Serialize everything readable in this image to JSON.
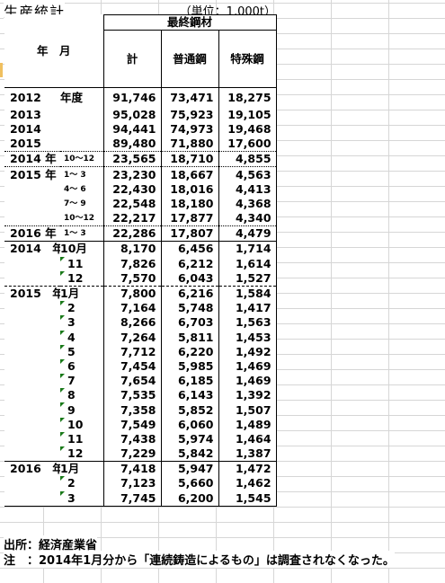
{
  "title": "生産統計",
  "unit": "（単位：1,000t）",
  "header": {
    "group": "最終鋼材",
    "year_month": "年　月",
    "cols": [
      "計",
      "普通鋼",
      "特殊鋼"
    ]
  },
  "rows": [
    {
      "year": "2012",
      "month": "年度",
      "v": [
        "91,746",
        "73,471",
        "18,275"
      ],
      "sep": "solid"
    },
    {
      "year": "2013",
      "month": "",
      "v": [
        "95,028",
        "75,923",
        "19,105"
      ]
    },
    {
      "year": "2014",
      "month": "",
      "v": [
        "94,441",
        "74,973",
        "19,468"
      ]
    },
    {
      "year": "2015",
      "month": "",
      "v": [
        "89,480",
        "71,880",
        "17,600"
      ]
    },
    {
      "year": "2014 年",
      "month": "10～12",
      "small": true,
      "v": [
        "23,565",
        "18,710",
        "4,855"
      ],
      "sep": "dot"
    },
    {
      "year": "2015 年",
      "month": "1～ 3",
      "small": true,
      "v": [
        "23,230",
        "18,667",
        "4,563"
      ],
      "sep": "dot"
    },
    {
      "year": "",
      "month": "4～ 6",
      "small": true,
      "v": [
        "22,430",
        "18,016",
        "4,413"
      ]
    },
    {
      "year": "",
      "month": "7～ 9",
      "small": true,
      "v": [
        "22,548",
        "18,180",
        "4,368"
      ]
    },
    {
      "year": "",
      "month": "10～12",
      "small": true,
      "v": [
        "22,217",
        "17,877",
        "4,340"
      ]
    },
    {
      "year": "2016 年",
      "month": "1～ 3",
      "small": true,
      "v": [
        "22,286",
        "17,807",
        "4,479"
      ],
      "sep": "dot"
    },
    {
      "year": "2014　年",
      "month": "10月",
      "v": [
        "8,170",
        "6,456",
        "1,714"
      ],
      "sep": "solid"
    },
    {
      "year": "",
      "month": "11",
      "tri": true,
      "v": [
        "7,826",
        "6,212",
        "1,614"
      ]
    },
    {
      "year": "",
      "month": "12",
      "tri": true,
      "v": [
        "7,570",
        "6,043",
        "1,527"
      ]
    },
    {
      "year": "2015　年",
      "month": "1月",
      "v": [
        "7,800",
        "6,216",
        "1,584"
      ],
      "sep": "dash"
    },
    {
      "year": "",
      "month": "2",
      "tri": true,
      "v": [
        "7,164",
        "5,748",
        "1,417"
      ]
    },
    {
      "year": "",
      "month": "3",
      "tri": true,
      "v": [
        "8,266",
        "6,703",
        "1,563"
      ]
    },
    {
      "year": "",
      "month": "4",
      "tri": true,
      "v": [
        "7,264",
        "5,811",
        "1,453"
      ]
    },
    {
      "year": "",
      "month": "5",
      "tri": true,
      "v": [
        "7,712",
        "6,220",
        "1,492"
      ]
    },
    {
      "year": "",
      "month": "6",
      "tri": true,
      "v": [
        "7,454",
        "5,985",
        "1,469"
      ]
    },
    {
      "year": "",
      "month": "7",
      "tri": true,
      "v": [
        "7,654",
        "6,185",
        "1,469"
      ]
    },
    {
      "year": "",
      "month": "8",
      "tri": true,
      "v": [
        "7,535",
        "6,143",
        "1,392"
      ]
    },
    {
      "year": "",
      "month": "9",
      "tri": true,
      "v": [
        "7,358",
        "5,852",
        "1,507"
      ]
    },
    {
      "year": "",
      "month": "10",
      "tri": true,
      "v": [
        "7,549",
        "6,060",
        "1,489"
      ]
    },
    {
      "year": "",
      "month": "11",
      "tri": true,
      "v": [
        "7,438",
        "5,974",
        "1,464"
      ]
    },
    {
      "year": "",
      "month": "12",
      "tri": true,
      "v": [
        "7,229",
        "5,842",
        "1,387"
      ]
    },
    {
      "year": "2016　年",
      "month": "1月",
      "v": [
        "7,418",
        "5,947",
        "1,472"
      ],
      "sep": "solid"
    },
    {
      "year": "",
      "month": "2",
      "tri": true,
      "v": [
        "7,123",
        "5,660",
        "1,462"
      ]
    },
    {
      "year": "",
      "month": "3",
      "tri": true,
      "v": [
        "7,745",
        "6,200",
        "1,545"
      ]
    }
  ],
  "footer": {
    "source": "出所：経済産業省",
    "note": "注　：2014年1月分から「連続鋳造によるもの」は調査されなくなった。"
  }
}
